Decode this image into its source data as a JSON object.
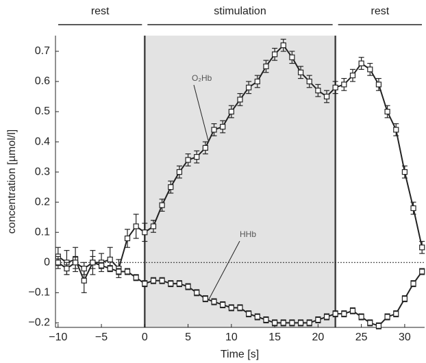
{
  "chart_data": {
    "type": "line",
    "x_label": "Time [s]",
    "y_label": "concentration [µmol/l]",
    "xlim": [
      -10.3,
      32.3
    ],
    "ylim": [
      -0.215,
      0.752
    ],
    "xticks": [
      {
        "value": -10,
        "label": "−10"
      },
      {
        "value": -5,
        "label": "−5"
      },
      0,
      5,
      10,
      15,
      20,
      25,
      30
    ],
    "yticks": [
      {
        "value": -0.2,
        "label": "−0.2"
      },
      {
        "value": -0.1,
        "label": "−0.1"
      },
      0,
      0.1,
      0.2,
      0.3,
      0.4,
      0.5,
      0.6,
      0.7
    ],
    "reference_line": 0,
    "periods": [
      {
        "label": "rest",
        "start": -10.3,
        "end": 0
      },
      {
        "label": "stimulation",
        "start": 0,
        "end": 22
      },
      {
        "label": "rest",
        "start": 22,
        "end": 32.3
      }
    ],
    "shaded_period": 1,
    "x": [
      -10,
      -9,
      -8,
      -7,
      -6,
      -5,
      -4,
      -3,
      -2,
      -1,
      0,
      1,
      2,
      3,
      4,
      5,
      6,
      7,
      8,
      9,
      10,
      11,
      12,
      13,
      14,
      15,
      16,
      17,
      18,
      19,
      20,
      21,
      22,
      23,
      24,
      25,
      26,
      27,
      28,
      29,
      30,
      31,
      32
    ],
    "series": [
      {
        "name": "O₂Hb",
        "color": "#222222",
        "values": [
          0.02,
          0.0,
          0.01,
          -0.06,
          0.0,
          0.0,
          0.01,
          -0.02,
          0.08,
          0.12,
          0.1,
          0.12,
          0.19,
          0.25,
          0.3,
          0.34,
          0.35,
          0.38,
          0.44,
          0.45,
          0.5,
          0.54,
          0.58,
          0.6,
          0.65,
          0.69,
          0.72,
          0.68,
          0.63,
          0.6,
          0.57,
          0.55,
          0.58,
          0.59,
          0.62,
          0.66,
          0.64,
          0.59,
          0.5,
          0.44,
          0.3,
          0.18,
          0.05
        ],
        "errors": [
          0.03,
          0.04,
          0.04,
          0.04,
          0.04,
          0.03,
          0.04,
          0.03,
          0.03,
          0.04,
          0.03,
          0.02,
          0.02,
          0.02,
          0.02,
          0.02,
          0.02,
          0.02,
          0.02,
          0.02,
          0.02,
          0.02,
          0.02,
          0.02,
          0.02,
          0.02,
          0.02,
          0.02,
          0.02,
          0.02,
          0.02,
          0.02,
          0.02,
          0.02,
          0.02,
          0.02,
          0.02,
          0.02,
          0.02,
          0.02,
          0.02,
          0.02,
          0.02
        ]
      },
      {
        "name": "HHb",
        "color": "#222222",
        "values": [
          0.0,
          -0.02,
          0.0,
          -0.02,
          0.0,
          -0.01,
          -0.02,
          -0.03,
          -0.03,
          -0.05,
          -0.07,
          -0.06,
          -0.06,
          -0.07,
          -0.07,
          -0.08,
          -0.1,
          -0.12,
          -0.13,
          -0.14,
          -0.15,
          -0.15,
          -0.17,
          -0.18,
          -0.19,
          -0.2,
          -0.2,
          -0.2,
          -0.2,
          -0.2,
          -0.19,
          -0.18,
          -0.17,
          -0.17,
          -0.16,
          -0.18,
          -0.2,
          -0.21,
          -0.18,
          -0.17,
          -0.12,
          -0.07,
          -0.03
        ],
        "errors": [
          0.02,
          0.02,
          0.02,
          0.02,
          0.02,
          0.01,
          0.01,
          0.01,
          0.01,
          0.01,
          0.01,
          0.01,
          0.01,
          0.01,
          0.01,
          0.01,
          0.01,
          0.01,
          0.01,
          0.01,
          0.01,
          0.01,
          0.01,
          0.01,
          0.01,
          0.01,
          0.01,
          0.01,
          0.01,
          0.01,
          0.01,
          0.01,
          0.01,
          0.01,
          0.01,
          0.01,
          0.01,
          0.01,
          0.01,
          0.01,
          0.01,
          0.01,
          0.01
        ]
      }
    ]
  }
}
